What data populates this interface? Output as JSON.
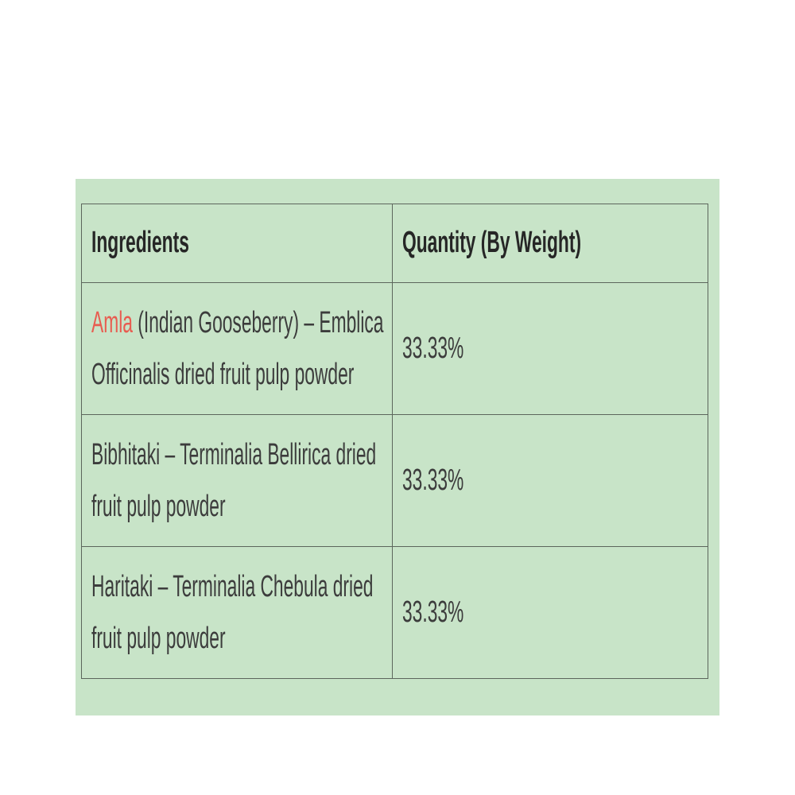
{
  "colors": {
    "page_bg": "#ffffff",
    "panel_bg": "#c8e4c8",
    "border": "#5c665c",
    "text": "#3c3c3c",
    "header_text": "#262626",
    "highlight": "#e85c50"
  },
  "table": {
    "headers": [
      "Ingredients",
      "Quantity (By Weight)"
    ],
    "rows": [
      {
        "ingredient_highlight": "Amla",
        "ingredient_rest": " (Indian Gooseberry) – Emblica Officinalis dried fruit pulp powder",
        "quantity": "33.33%"
      },
      {
        "ingredient_highlight": "",
        "ingredient_rest": "Bibhitaki – Terminalia Bellirica dried fruit pulp powder",
        "quantity": "33.33%"
      },
      {
        "ingredient_highlight": "",
        "ingredient_rest": "Haritaki – Terminalia Chebula dried fruit pulp powder",
        "quantity": "33.33%"
      }
    ]
  }
}
